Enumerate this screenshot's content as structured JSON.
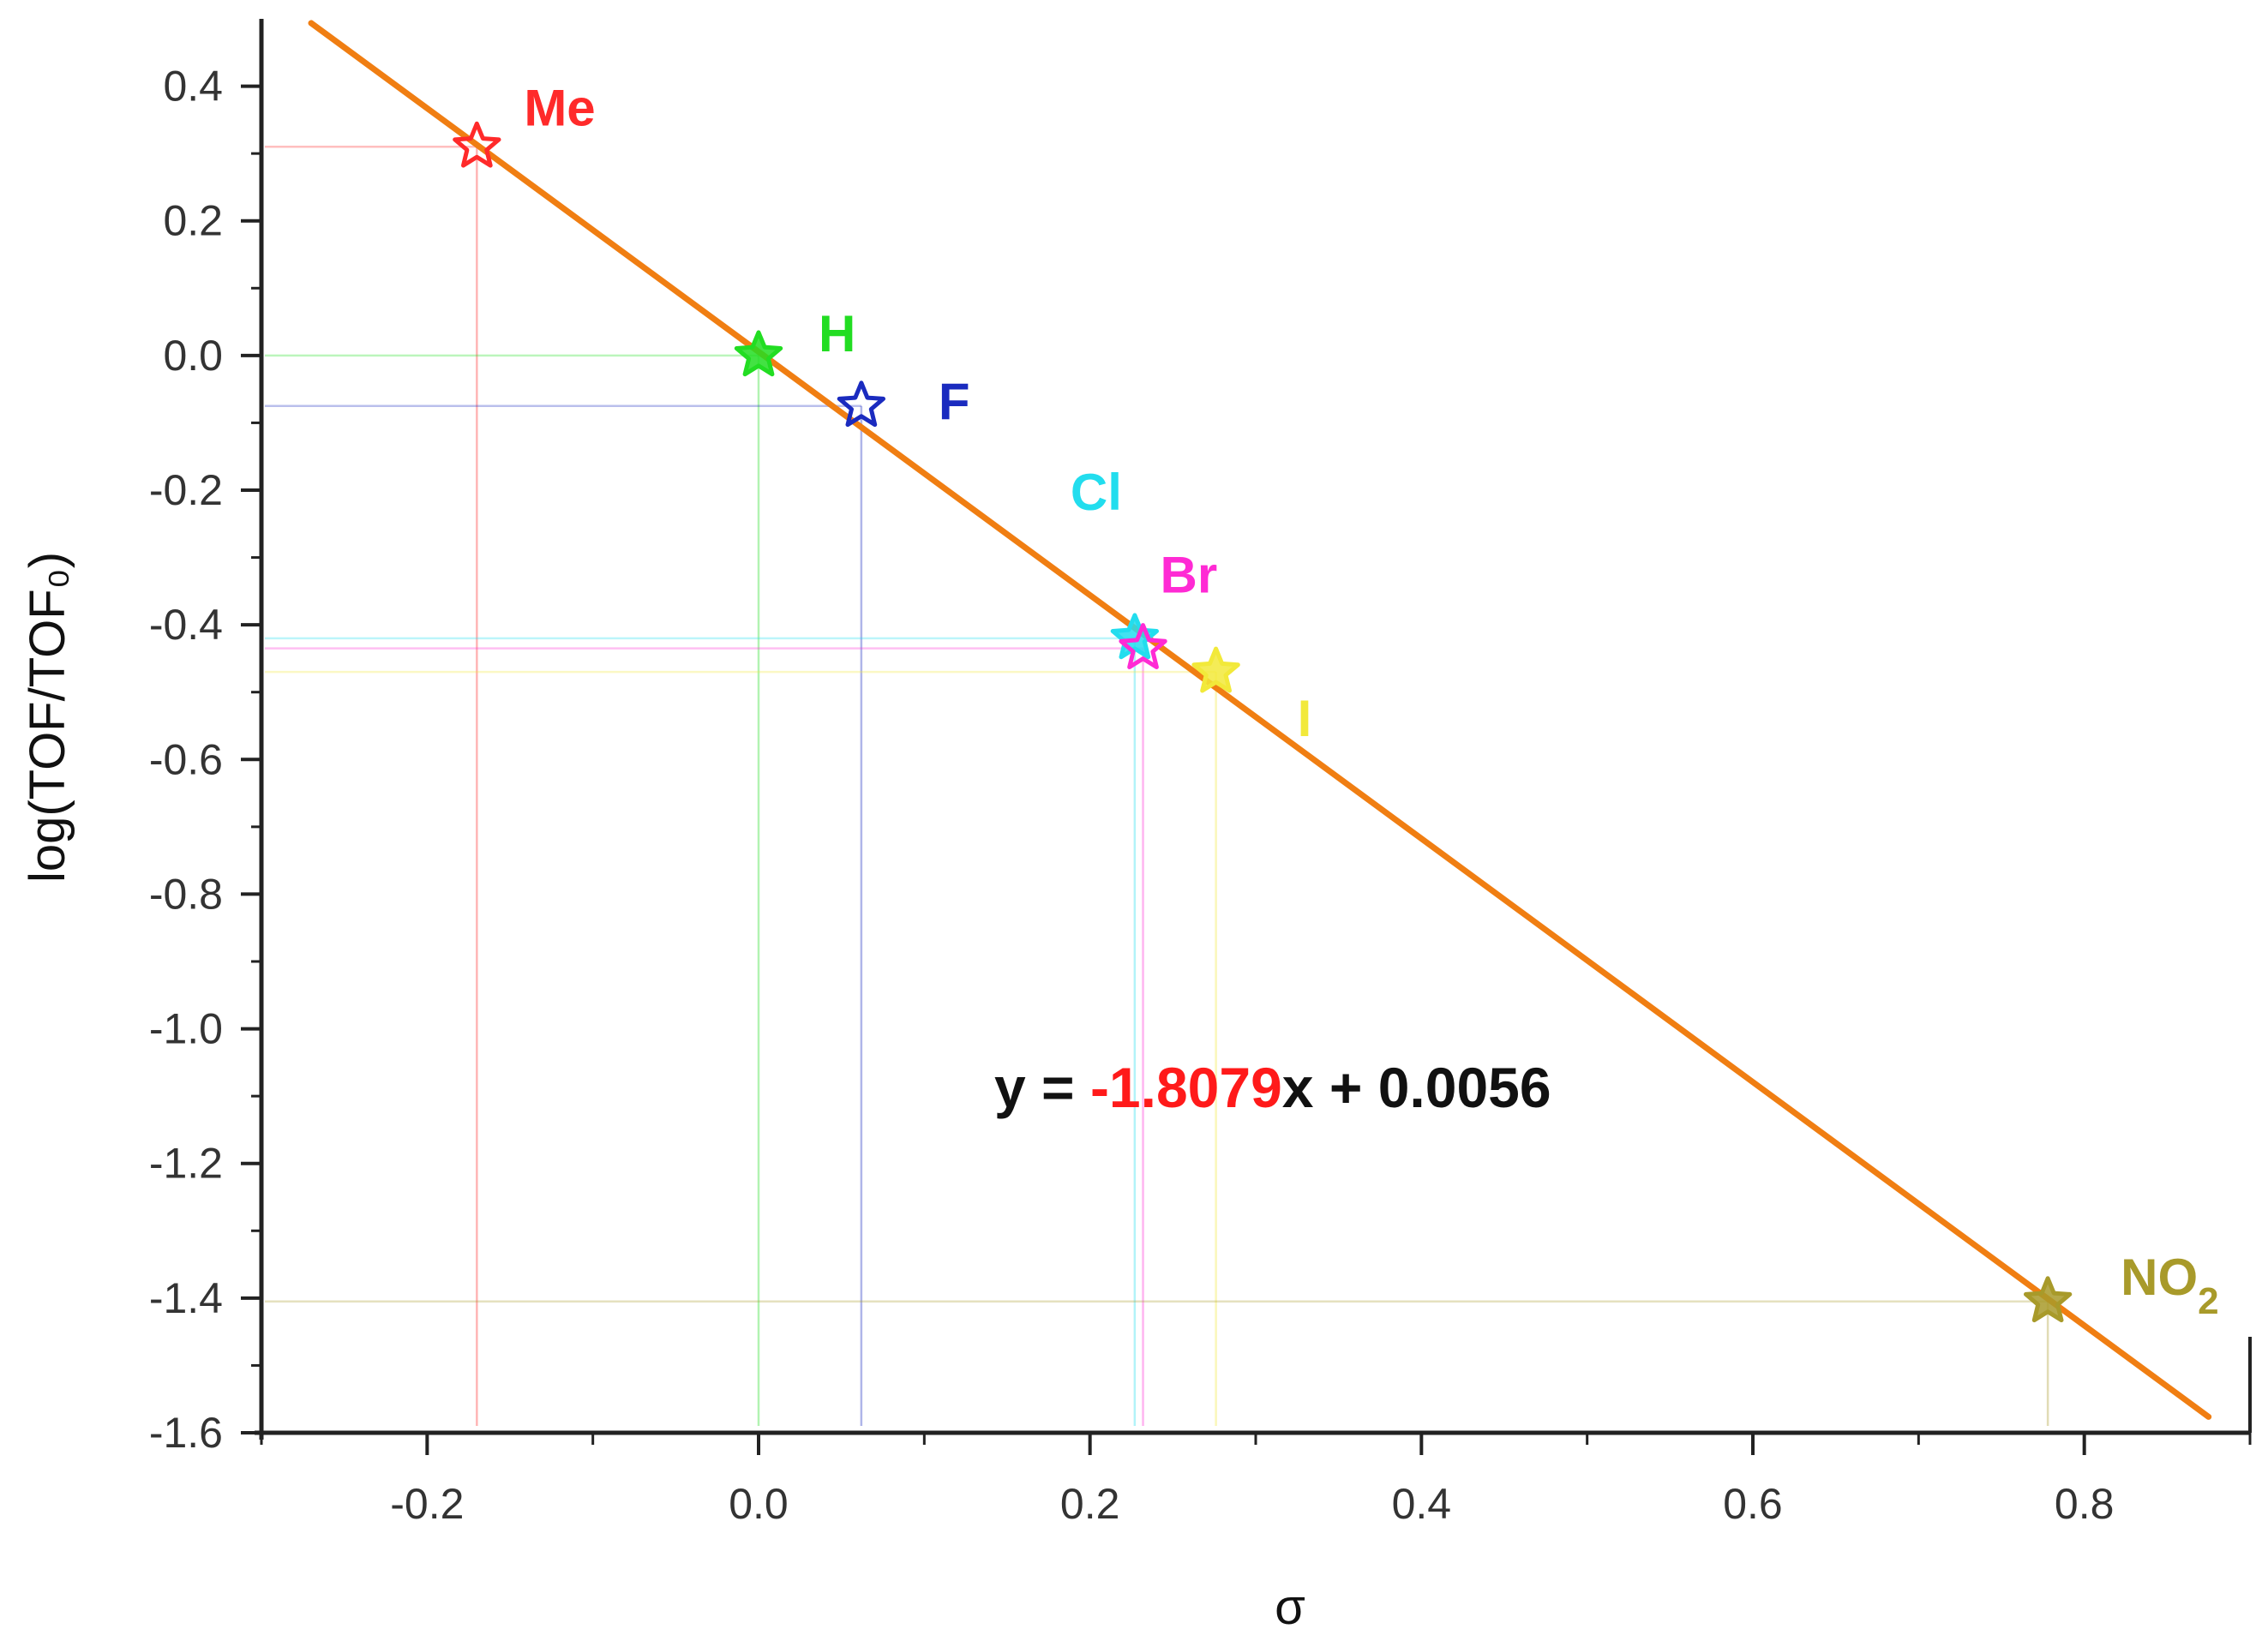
{
  "chart_data": {
    "type": "scatter",
    "title": "",
    "xlabel": "σ",
    "ylabel": "log(TOF/TOF₀)",
    "xlim": [
      -0.3,
      0.9
    ],
    "ylim": [
      -1.6,
      0.5
    ],
    "x_ticks": [
      -0.2,
      0.0,
      0.2,
      0.4,
      0.6,
      0.8
    ],
    "x_tick_labels": [
      "-0.2",
      "0.0",
      "0.2",
      "0.4",
      "0.6",
      "0.8"
    ],
    "y_ticks": [
      0.4,
      0.2,
      0.0,
      -0.2,
      -0.4,
      -0.6,
      -0.8,
      -1.0,
      -1.2,
      -1.4,
      -1.6
    ],
    "y_tick_labels": [
      "0.4",
      "0.2",
      "0.0",
      "-0.2",
      "-0.4",
      "-0.6",
      "-0.8",
      "-1.0",
      "-1.2",
      "-1.4",
      "-1.6"
    ],
    "grid": false,
    "series": [
      {
        "name": "Me",
        "x": -0.17,
        "y": 0.31,
        "color": "#ff2a2a"
      },
      {
        "name": "H",
        "x": 0.0,
        "y": 0.0,
        "color": "#22dd22"
      },
      {
        "name": "F",
        "x": 0.062,
        "y": -0.075,
        "color": "#1a2bbf"
      },
      {
        "name": "Cl",
        "x": 0.227,
        "y": -0.42,
        "color": "#22ddee"
      },
      {
        "name": "Br",
        "x": 0.232,
        "y": -0.435,
        "color": "#ff2ad4"
      },
      {
        "name": "I",
        "x": 0.276,
        "y": -0.47,
        "color": "#f2e93a"
      },
      {
        "name": "NO",
        "sub": "2",
        "x": 0.778,
        "y": -1.405,
        "color": "#a89a2a"
      }
    ],
    "fit": {
      "slope": -1.8079,
      "intercept": 0.0056,
      "x_range": [
        -0.27,
        0.875
      ],
      "color": "#f07e12",
      "equation": {
        "prefix": "y = ",
        "slope_text": "-1.8079",
        "suffix": "x + 0.0056",
        "slope_color": "#ff1a1a",
        "text_color": "#111111"
      }
    }
  }
}
